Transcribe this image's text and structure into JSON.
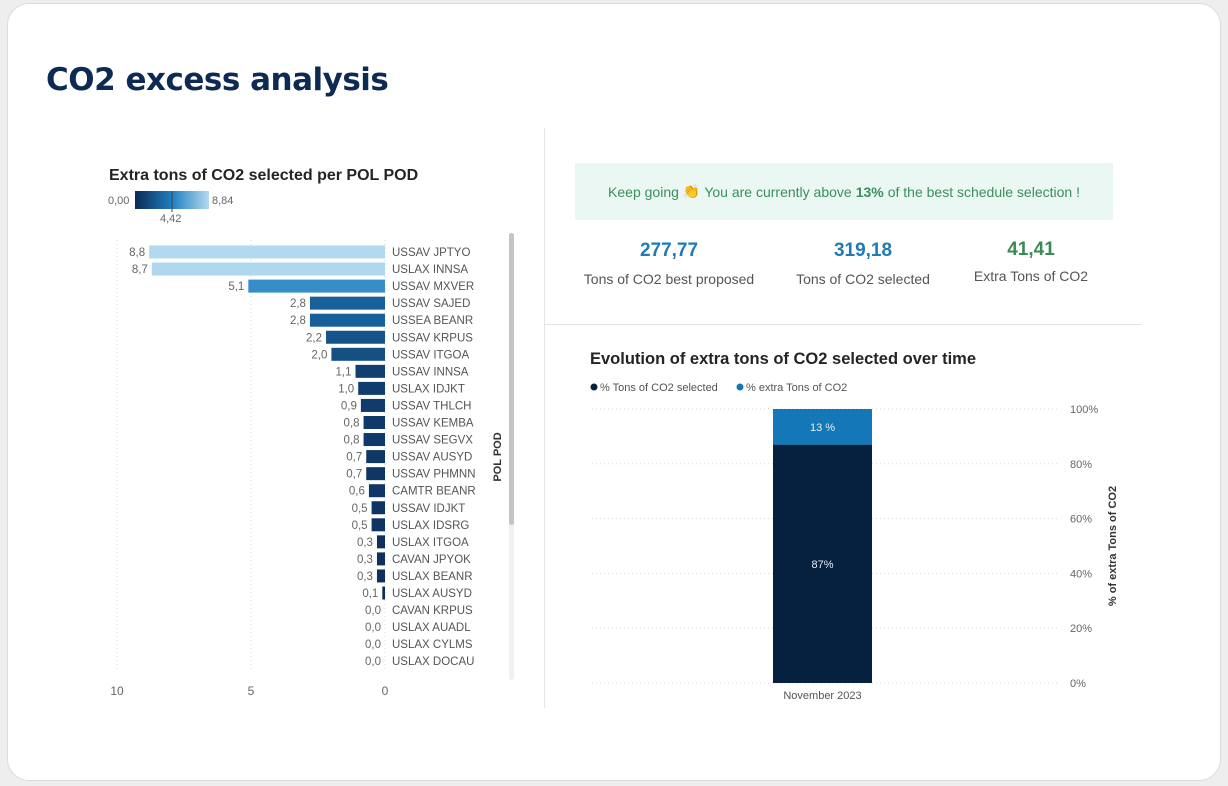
{
  "page_title": "CO2 excess analysis",
  "banner": {
    "prefix": "Keep going",
    "icon": "clapping-hands-icon",
    "middle": "You are currently above",
    "percent": "13%",
    "suffix": "of the best schedule selection !"
  },
  "kpis": [
    {
      "value": "277,77",
      "label": "Tons of CO2 best proposed",
      "color": "#1f7ab8"
    },
    {
      "value": "319,18",
      "label": "Tons of CO2 selected",
      "color": "#1f7ab8"
    },
    {
      "value": "41,41",
      "label": "Extra Tons of CO2",
      "color": "#3a8a55"
    }
  ],
  "chart_data": [
    {
      "type": "bar",
      "orientation": "horizontal",
      "title": "Extra tons of CO2 selected per POL POD",
      "ylabel": "POL POD",
      "color_scale": {
        "min_label": "0,00",
        "mid_label": "4,42",
        "max_label": "8,84",
        "min": 0,
        "mid": 4.42,
        "max": 8.84,
        "colors": [
          "#0c2a55",
          "#1f7fc0",
          "#b4daee"
        ]
      },
      "categories": [
        "USSAV JPTYO",
        "USLAX INNSA",
        "USSAV MXVER",
        "USSAV SAJED",
        "USSEA BEANR",
        "USSAV KRPUS",
        "USSAV ITGOA",
        "USSAV INNSA",
        "USLAX IDJKT",
        "USSAV THLCH",
        "USSAV KEMBA",
        "USSAV SEGVX",
        "USSAV AUSYD",
        "USSAV PHMNN",
        "CAMTR BEANR",
        "USSAV IDJKT",
        "USLAX IDSRG",
        "USLAX ITGOA",
        "CAVAN JPYOK",
        "USLAX BEANR",
        "USLAX AUSYD",
        "CAVAN KRPUS",
        "USLAX AUADL",
        "USLAX CYLMS",
        "USLAX DOCAU"
      ],
      "values": [
        8.8,
        8.7,
        5.1,
        2.8,
        2.8,
        2.2,
        2.0,
        1.1,
        1.0,
        0.9,
        0.8,
        0.8,
        0.7,
        0.7,
        0.6,
        0.5,
        0.5,
        0.3,
        0.3,
        0.3,
        0.1,
        0.0,
        0.0,
        0.0,
        0.0
      ],
      "value_labels": [
        "8,8",
        "8,7",
        "5,1",
        "2,8",
        "2,8",
        "2,2",
        "2,0",
        "1,1",
        "1,0",
        "0,9",
        "0,8",
        "0,8",
        "0,7",
        "0,7",
        "0,6",
        "0,5",
        "0,5",
        "0,3",
        "0,3",
        "0,3",
        "0,1",
        "0,0",
        "0,0",
        "0,0",
        "0,0"
      ],
      "xlim": [
        10,
        0
      ],
      "xticks": [
        "10",
        "5",
        "0"
      ],
      "xtick_values": [
        10,
        5,
        0
      ],
      "grid": true
    },
    {
      "type": "bar",
      "stacked": true,
      "title": "Evolution of extra tons of CO2 selected over time",
      "ylabel": "% of extra Tons of CO2",
      "categories": [
        "November 2023"
      ],
      "series": [
        {
          "name": "% Tons of CO2 selected",
          "values": [
            87
          ],
          "label": "87%",
          "color": "#06213f"
        },
        {
          "name": "% extra Tons of CO2",
          "values": [
            13
          ],
          "label": "13 %",
          "color": "#1477b8"
        }
      ],
      "ylim": [
        0,
        100
      ],
      "yticks": [
        "0%",
        "20%",
        "40%",
        "60%",
        "80%",
        "100%"
      ],
      "ytick_values": [
        0,
        20,
        40,
        60,
        80,
        100
      ],
      "legend": "top-left",
      "grid": true
    }
  ]
}
